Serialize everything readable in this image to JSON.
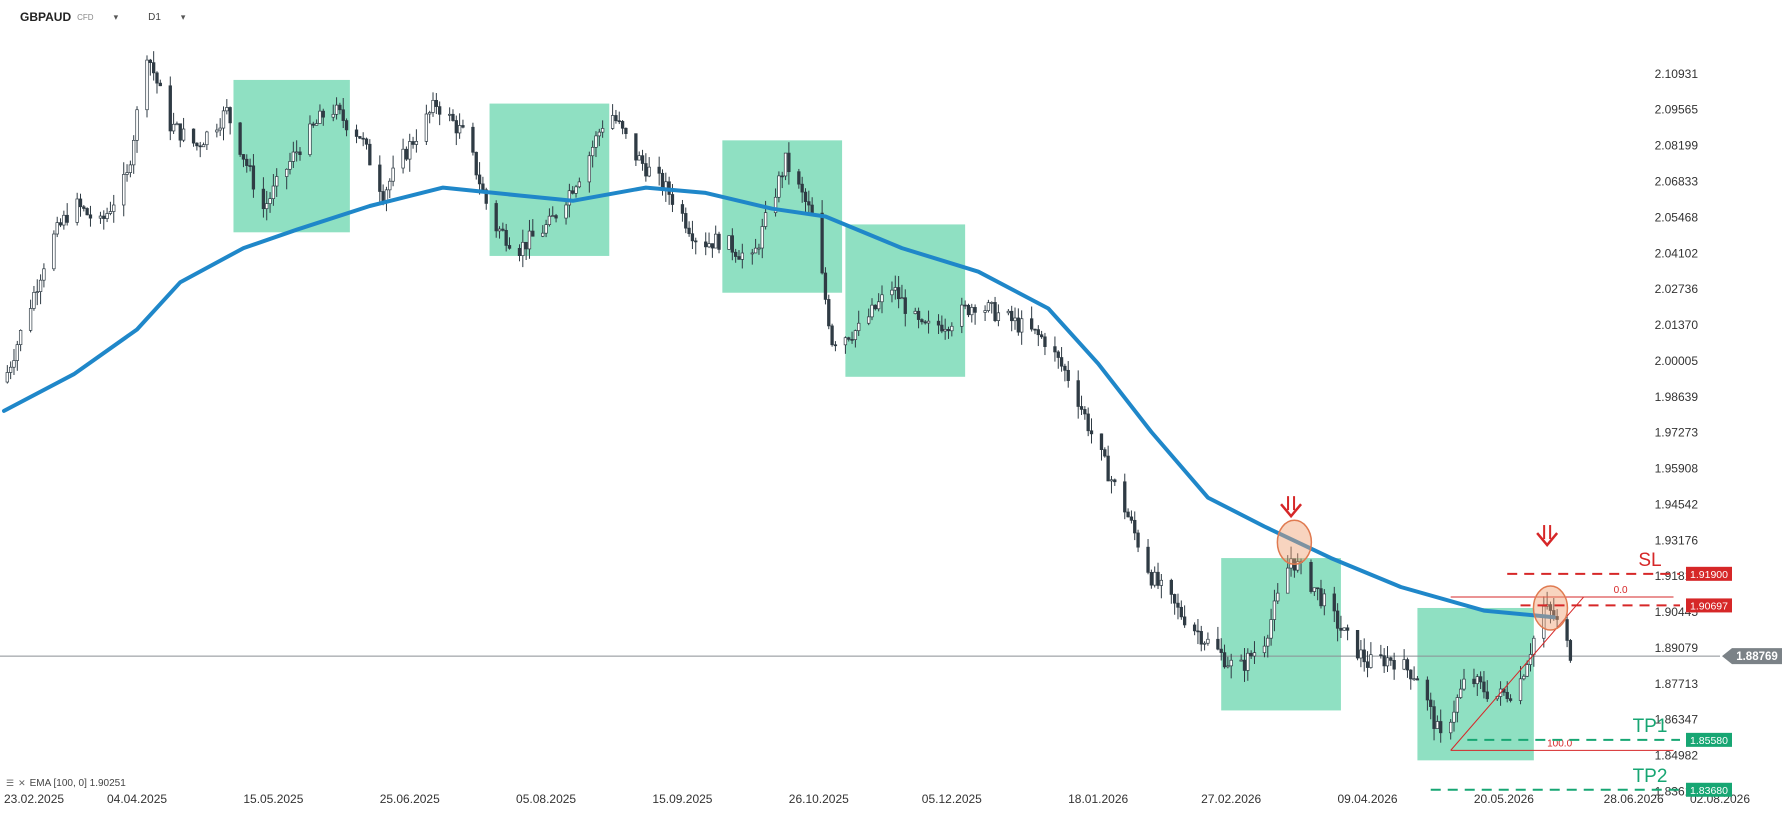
{
  "header": {
    "symbol": "GBPAUD",
    "instrument_type": "CFD",
    "timeframe": "D1",
    "symbol_caret_icon": "caret-down-icon",
    "timeframe_caret_icon": "caret-down-icon"
  },
  "indicator_legend": {
    "icons": [
      "list-icon",
      "close-icon"
    ],
    "label": "EMA [100, 0] 1.90251"
  },
  "colors": {
    "candle": "#2f3b44",
    "ema": "#1f87c9",
    "zone_fill": "#5fd3a8",
    "sl": "#d62728",
    "tp": "#17a673",
    "marker": "#f0a070",
    "price_line": "#8a8f94",
    "price_tag": "#7b8287"
  },
  "chart_data": {
    "type": "candlestick",
    "symbol": "GBPAUD",
    "timeframe": "D1",
    "ylim": [
      1.8291,
      2.1222
    ],
    "y_ticks": [
      "2.10931",
      "2.09565",
      "2.08199",
      "2.06833",
      "2.05468",
      "2.04102",
      "2.02736",
      "2.01370",
      "2.00005",
      "1.98639",
      "1.97273",
      "1.95908",
      "1.94542",
      "1.93176",
      "1.91810",
      "1.90445",
      "1.89079",
      "1.87713",
      "1.86347",
      "1.84982",
      "1.83616"
    ],
    "x_ticks": [
      "23.02.2025",
      "04.04.2025",
      "15.05.2025",
      "25.06.2025",
      "05.08.2025",
      "15.09.2025",
      "26.10.2025",
      "05.12.2025",
      "18.01.2026",
      "27.02.2026",
      "09.04.2026",
      "20.05.2026",
      "28.06.2026",
      "02.08.2026"
    ],
    "x_range": [
      "2025-02-23",
      "2026-08-02"
    ],
    "price_anchors": [
      [
        "2025-02-23",
        1.992
      ],
      [
        "2025-03-02",
        2.018
      ],
      [
        "2025-03-09",
        2.045
      ],
      [
        "2025-03-16",
        2.06
      ],
      [
        "2025-03-24",
        2.052
      ],
      [
        "2025-04-01",
        2.07
      ],
      [
        "2025-04-07",
        2.118
      ],
      [
        "2025-04-14",
        2.09
      ],
      [
        "2025-04-22",
        2.082
      ],
      [
        "2025-05-01",
        2.095
      ],
      [
        "2025-05-12",
        2.058
      ],
      [
        "2025-05-22",
        2.08
      ],
      [
        "2025-06-01",
        2.097
      ],
      [
        "2025-06-10",
        2.086
      ],
      [
        "2025-06-17",
        2.064
      ],
      [
        "2025-06-25",
        2.082
      ],
      [
        "2025-07-03",
        2.098
      ],
      [
        "2025-07-12",
        2.085
      ],
      [
        "2025-07-20",
        2.052
      ],
      [
        "2025-07-28",
        2.043
      ],
      [
        "2025-08-06",
        2.052
      ],
      [
        "2025-08-16",
        2.073
      ],
      [
        "2025-08-24",
        2.096
      ],
      [
        "2025-09-01",
        2.078
      ],
      [
        "2025-09-11",
        2.064
      ],
      [
        "2025-09-20",
        2.045
      ],
      [
        "2025-09-27",
        2.046
      ],
      [
        "2025-10-06",
        2.038
      ],
      [
        "2025-10-16",
        2.076
      ],
      [
        "2025-10-24",
        2.055
      ],
      [
        "2025-10-30",
        2.008
      ],
      [
        "2025-11-07",
        2.012
      ],
      [
        "2025-11-17",
        2.028
      ],
      [
        "2025-11-26",
        2.012
      ],
      [
        "2025-12-04",
        2.015
      ],
      [
        "2025-12-12",
        2.022
      ],
      [
        "2025-12-22",
        2.016
      ],
      [
        "2026-01-02",
        2.008
      ],
      [
        "2026-01-10",
        1.992
      ],
      [
        "2026-01-18",
        1.966
      ],
      [
        "2026-01-26",
        1.944
      ],
      [
        "2026-02-03",
        1.918
      ],
      [
        "2026-02-11",
        1.905
      ],
      [
        "2026-02-20",
        1.893
      ],
      [
        "2026-03-01",
        1.882
      ],
      [
        "2026-03-09",
        1.894
      ],
      [
        "2026-03-17",
        1.925
      ],
      [
        "2026-03-25",
        1.912
      ],
      [
        "2026-04-02",
        1.896
      ],
      [
        "2026-04-09",
        1.885
      ],
      [
        "2026-04-16",
        1.887
      ],
      [
        "2026-04-24",
        1.88
      ],
      [
        "2026-05-01",
        1.856
      ],
      [
        "2026-05-09",
        1.88
      ],
      [
        "2026-05-17",
        1.872
      ],
      [
        "2026-05-24",
        1.875
      ],
      [
        "2026-06-01",
        1.906
      ],
      [
        "2026-06-04",
        1.903
      ],
      [
        "2026-06-09",
        1.889
      ]
    ],
    "ema": {
      "name": "EMA [100, 0]",
      "last_value": 1.90251,
      "points": [
        [
          "2025-02-23",
          1.981
        ],
        [
          "2025-03-16",
          1.995
        ],
        [
          "2025-04-04",
          2.012
        ],
        [
          "2025-04-17",
          2.03
        ],
        [
          "2025-05-06",
          2.043
        ],
        [
          "2025-05-22",
          2.05
        ],
        [
          "2025-06-13",
          2.059
        ],
        [
          "2025-07-05",
          2.066
        ],
        [
          "2025-07-28",
          2.063
        ],
        [
          "2025-08-13",
          2.061
        ],
        [
          "2025-09-04",
          2.066
        ],
        [
          "2025-09-22",
          2.064
        ],
        [
          "2025-10-12",
          2.058
        ],
        [
          "2025-10-28",
          2.055
        ],
        [
          "2025-11-20",
          2.043
        ],
        [
          "2025-12-13",
          2.034
        ],
        [
          "2026-01-03",
          2.02
        ],
        [
          "2026-01-18",
          1.999
        ],
        [
          "2026-02-03",
          1.973
        ],
        [
          "2026-02-20",
          1.948
        ],
        [
          "2026-03-09",
          1.937
        ],
        [
          "2026-03-29",
          1.925
        ],
        [
          "2026-04-19",
          1.914
        ],
        [
          "2026-05-14",
          1.905
        ],
        [
          "2026-06-04",
          1.9025
        ]
      ]
    },
    "zones": [
      {
        "x": [
          "2025-05-03",
          "2025-06-07"
        ],
        "y": [
          2.049,
          2.107
        ]
      },
      {
        "x": [
          "2025-07-19",
          "2025-08-24"
        ],
        "y": [
          2.04,
          2.098
        ]
      },
      {
        "x": [
          "2025-09-27",
          "2025-11-02"
        ],
        "y": [
          2.026,
          2.084
        ]
      },
      {
        "x": [
          "2025-11-03",
          "2025-12-09"
        ],
        "y": [
          1.994,
          2.052
        ]
      },
      {
        "x": [
          "2026-02-24",
          "2026-04-01"
        ],
        "y": [
          1.867,
          1.925
        ]
      },
      {
        "x": [
          "2026-04-24",
          "2026-05-29"
        ],
        "y": [
          1.848,
          1.906
        ]
      }
    ],
    "markers": [
      {
        "type": "ellipse",
        "x": "2026-03-18",
        "y": 1.931
      },
      {
        "type": "ellipse",
        "x": "2026-06-03",
        "y": 1.906
      },
      {
        "type": "arrow-down",
        "x": "2026-03-17",
        "y": 1.944
      },
      {
        "type": "arrow-down",
        "x": "2026-06-02",
        "y": 1.933
      }
    ],
    "fib": {
      "from": [
        "2026-05-04",
        1.8518
      ],
      "to": [
        "2026-06-13",
        1.9102
      ],
      "levels": [
        "0.0",
        "100.0"
      ]
    },
    "levels": [
      {
        "label": "SL",
        "value": "1.91900",
        "y": 1.919,
        "x_start": "2026-05-21",
        "style": "dashed",
        "color": "#d62728"
      },
      {
        "label": "",
        "value": "1.90697",
        "y": 1.90697,
        "x_start": "2026-05-25",
        "style": "dashed",
        "color": "#d62728"
      },
      {
        "label": "TP1",
        "value": "1.85580",
        "y": 1.8558,
        "x_start": "2026-05-09",
        "style": "dashed",
        "color": "#17a673"
      },
      {
        "label": "TP2",
        "value": "1.83680",
        "y": 1.8368,
        "x_start": "2026-04-28",
        "style": "dashed",
        "color": "#17a673"
      }
    ],
    "current_price": {
      "value": "1.88769",
      "y": 1.88769
    }
  }
}
